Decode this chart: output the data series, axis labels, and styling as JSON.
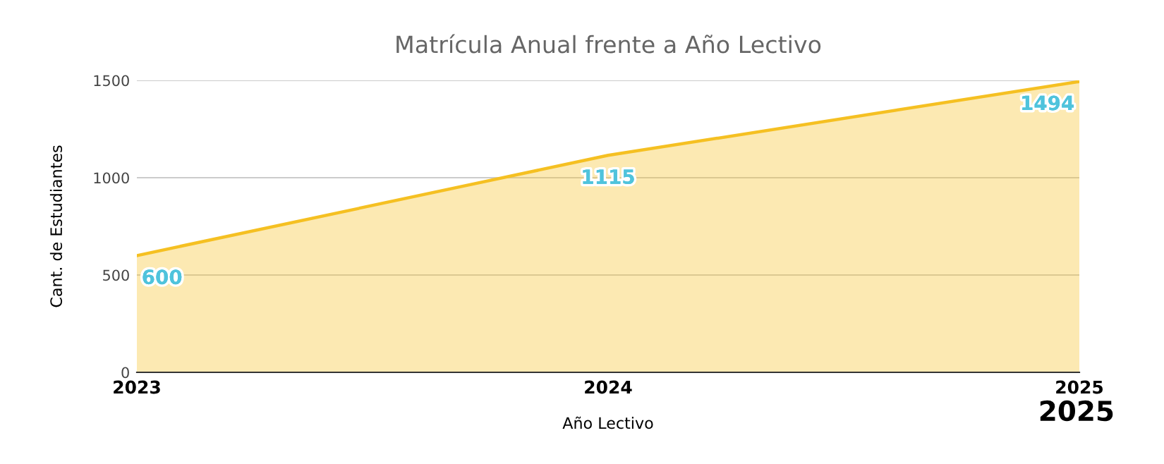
{
  "chart_data": {
    "type": "area",
    "title": "Matrícula Anual frente a Año Lectivo",
    "xlabel": "Año Lectivo",
    "ylabel": "Cant. de Estudiantes",
    "categories": [
      "2023",
      "2024",
      "2025"
    ],
    "series": [
      {
        "color": "#f5c022",
        "values": [
          600,
          1115,
          1494
        ]
      }
    ],
    "ylim": [
      0,
      1500
    ],
    "yticks": [
      0,
      500,
      1000,
      1500
    ],
    "grid": "y",
    "data_labels": true,
    "annotations": [
      "2025"
    ]
  }
}
